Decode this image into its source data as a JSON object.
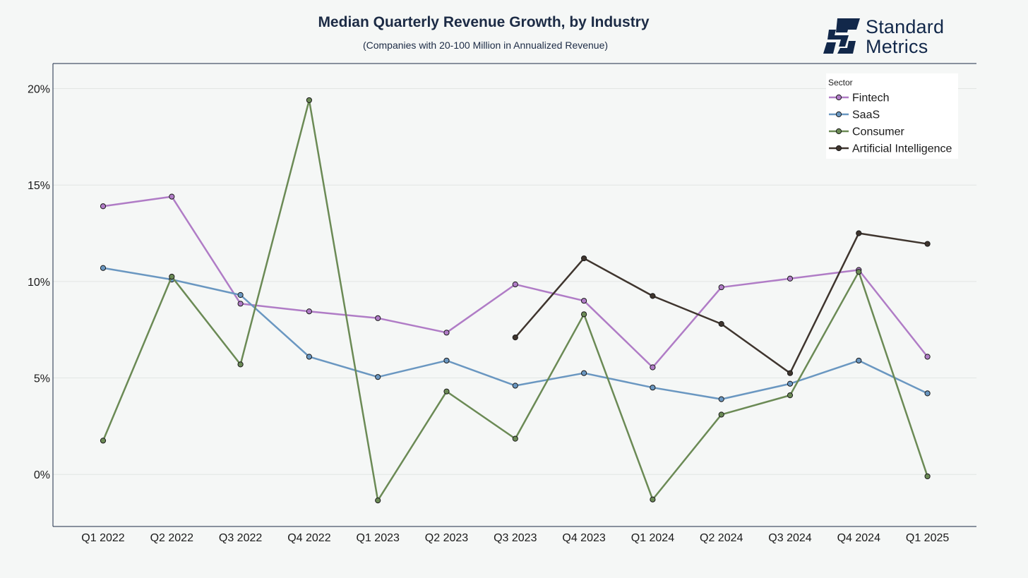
{
  "chart_data": {
    "type": "line",
    "title": "Median Quarterly Revenue Growth, by Industry",
    "subtitle": "(Companies with 20-100 Million in Annualized Revenue)",
    "xlabel": "",
    "ylabel": "",
    "categories": [
      "Q1 2022",
      "Q2 2022",
      "Q3 2022",
      "Q4 2022",
      "Q1 2023",
      "Q2 2023",
      "Q3 2023",
      "Q4 2023",
      "Q1 2024",
      "Q2 2024",
      "Q3 2024",
      "Q4 2024",
      "Q1 2025"
    ],
    "ylim": [
      -2.7,
      21.3
    ],
    "yticks": [
      0,
      5,
      10,
      15,
      20
    ],
    "ytick_labels": [
      "0%",
      "5%",
      "10%",
      "15%",
      "20%"
    ],
    "grid": true,
    "legend": {
      "title": "Sector",
      "placement": "top-right"
    },
    "series": [
      {
        "name": "Fintech",
        "color": "#b07cc6",
        "values": [
          13.9,
          14.4,
          8.85,
          8.45,
          8.1,
          7.35,
          9.85,
          9.0,
          5.55,
          9.7,
          10.15,
          10.6,
          6.1
        ]
      },
      {
        "name": "SaaS",
        "color": "#6a97c1",
        "values": [
          10.7,
          10.1,
          9.3,
          6.1,
          5.05,
          5.9,
          4.6,
          5.25,
          4.5,
          3.9,
          4.7,
          5.9,
          4.2
        ]
      },
      {
        "name": "Consumer",
        "color": "#6b8a55",
        "values": [
          1.75,
          10.25,
          5.7,
          19.4,
          -1.35,
          4.3,
          1.85,
          8.3,
          -1.3,
          3.1,
          4.1,
          10.5,
          -0.1
        ]
      },
      {
        "name": "Artificial Intelligence",
        "color": "#3f352e",
        "values": [
          null,
          null,
          null,
          null,
          null,
          null,
          7.1,
          11.2,
          9.25,
          7.8,
          5.25,
          12.5,
          11.95
        ]
      }
    ]
  },
  "logo": {
    "line1": "Standard",
    "line2": "Metrics",
    "color": "#12284a"
  }
}
